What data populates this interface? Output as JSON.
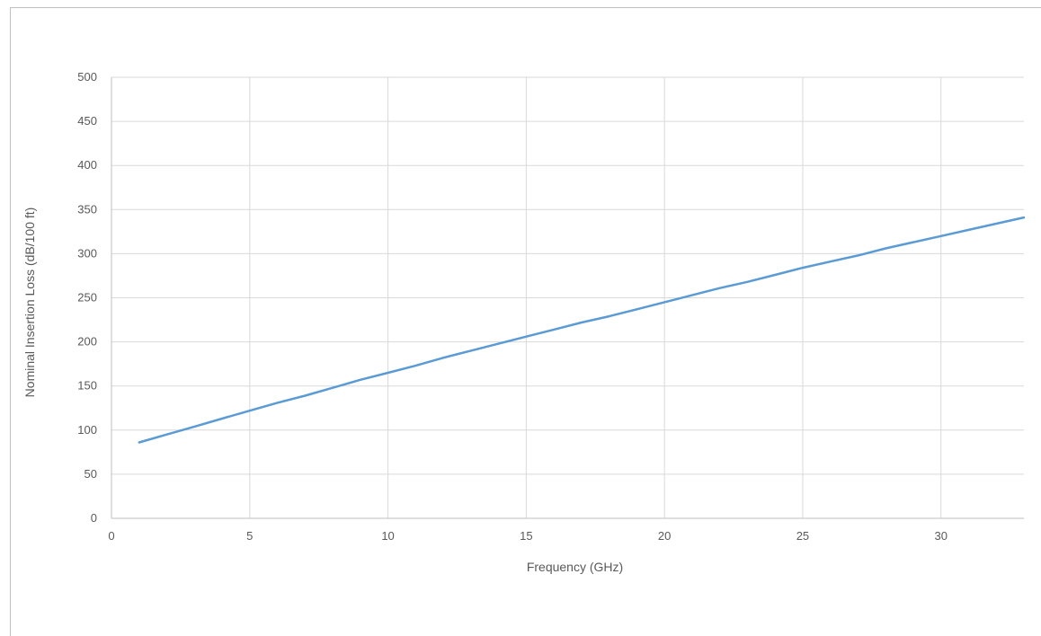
{
  "chart_data": {
    "type": "line",
    "title": "",
    "xlabel": "Frequency (GHz)",
    "ylabel": "Nominal Insertion Loss (dB/100 ft)",
    "xlim": [
      0,
      33
    ],
    "ylim": [
      0,
      500
    ],
    "x_ticks": [
      0,
      5,
      10,
      15,
      20,
      25,
      30
    ],
    "y_ticks": [
      0,
      50,
      100,
      150,
      200,
      250,
      300,
      350,
      400,
      450,
      500
    ],
    "grid": true,
    "legend": "none",
    "colors": {
      "line": "#5b9bd5",
      "grid": "#d9d9d9",
      "axis": "#bfbfbf",
      "text": "#595959"
    },
    "series": [
      {
        "x": [
          1,
          2,
          3,
          4,
          5,
          6,
          7,
          8,
          9,
          10,
          11,
          12,
          13,
          14,
          15,
          16,
          17,
          18,
          19,
          20,
          21,
          22,
          23,
          24,
          25,
          26,
          27,
          28,
          29,
          30,
          31,
          32,
          33
        ],
        "values": [
          86,
          95,
          104,
          113,
          122,
          131,
          139,
          148,
          157,
          165,
          173,
          182,
          190,
          198,
          206,
          214,
          222,
          229,
          237,
          245,
          253,
          261,
          268,
          276,
          284,
          291,
          298,
          306,
          313,
          320,
          327,
          334,
          341
        ]
      }
    ]
  }
}
